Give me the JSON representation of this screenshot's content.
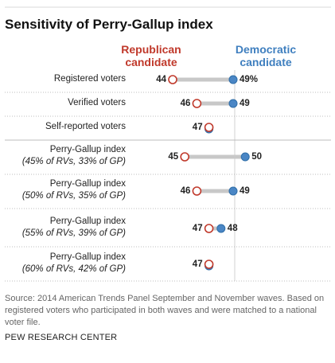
{
  "title": "Sensitivity of Perry-Gallup index",
  "legend": {
    "republican": "Republican candidate",
    "democratic": "Democratic candidate"
  },
  "colors": {
    "republican": "#c0392b",
    "democratic": "#4a86c5",
    "connector": "#c8c8c8",
    "divider": "#bdbdbd"
  },
  "chart_data": {
    "type": "dot",
    "title": "Sensitivity of Perry-Gallup index",
    "series": [
      {
        "name": "Republican candidate",
        "values": [
          44,
          46,
          47,
          45,
          46,
          47,
          47
        ]
      },
      {
        "name": "Democratic candidate",
        "values": [
          49,
          49,
          47,
          50,
          49,
          48,
          47
        ]
      }
    ],
    "categories": [
      {
        "label": "Registered voters",
        "sub": "",
        "rep_text": "44",
        "dem_text": "49%"
      },
      {
        "label": "Verified voters",
        "sub": "",
        "rep_text": "46",
        "dem_text": "49"
      },
      {
        "label": "Self-reported voters",
        "sub": "",
        "rep_text": "47",
        "dem_text": ""
      },
      {
        "label": "Perry-Gallup index",
        "sub": "(45% of RVs, 33% of GP)",
        "rep_text": "45",
        "dem_text": "50"
      },
      {
        "label": "Perry-Gallup index",
        "sub": "(50% of RVs, 35% of GP)",
        "rep_text": "46",
        "dem_text": "49"
      },
      {
        "label": "Perry-Gallup index",
        "sub": "(55% of RVs, 39% of GP)",
        "rep_text": "47",
        "dem_text": "48"
      },
      {
        "label": "Perry-Gallup index",
        "sub": "(60% of RVs, 42% of GP)",
        "rep_text": "47",
        "dem_text": ""
      }
    ]
  },
  "footer": {
    "source": "Source: 2014 American Trends Panel September and November waves. Based on registered voters who participated in both waves and were matched to a national voter file.",
    "credit": "PEW RESEARCH CENTER"
  }
}
